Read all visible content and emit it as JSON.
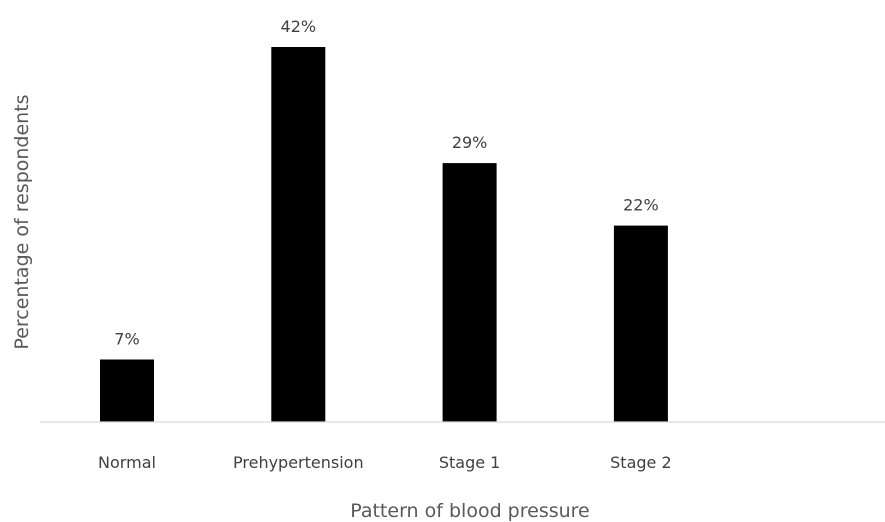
{
  "chart_data": {
    "type": "bar",
    "title": "",
    "xlabel": "Pattern of blood pressure",
    "ylabel": "Percentage of respondents",
    "categories": [
      "Normal",
      "Prehypertension",
      "Stage 1",
      "Stage 2"
    ],
    "values": [
      7,
      42,
      29,
      22
    ],
    "data_labels": [
      "7%",
      "42%",
      "29%",
      "22%"
    ],
    "unit": "%",
    "ylim": [
      0,
      42
    ],
    "grid": false,
    "legend": "none",
    "bar_color": "#000000",
    "axis_color": "#d9d9d9",
    "text_color": "#404040"
  }
}
